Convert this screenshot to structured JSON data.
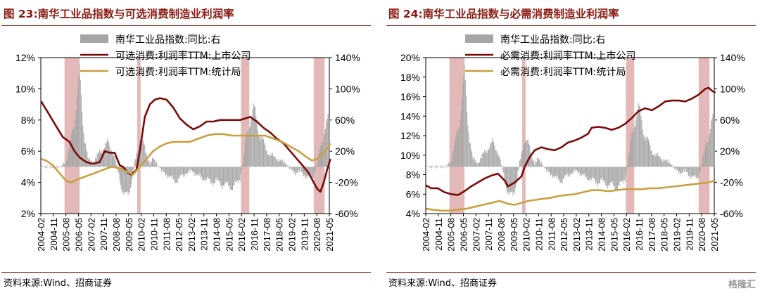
{
  "panels": [
    {
      "title": "图 23:南华工业品指数与可选消费制造业利润率",
      "source": "资料来源:Wind、招商证券"
    },
    {
      "title": "图 24:南华工业品指数与必需消费制造业利润率",
      "source": "资料来源:Wind、招商证券"
    }
  ],
  "watermark": "格隆汇",
  "chart_data": [
    {
      "type": "line",
      "x_ticks": [
        "2004-02",
        "2004-11",
        "2005-08",
        "2006-05",
        "2007-02",
        "2007-11",
        "2008-08",
        "2009-05",
        "2010-02",
        "2010-11",
        "2011-08",
        "2012-05",
        "2013-02",
        "2013-11",
        "2014-08",
        "2015-05",
        "2016-02",
        "2016-11",
        "2017-08",
        "2018-05",
        "2019-02",
        "2019-11",
        "2020-08",
        "2021-05"
      ],
      "y_left": {
        "lim": [
          2,
          12
        ],
        "ticks": [
          "2%",
          "4%",
          "6%",
          "8%",
          "10%",
          "12%"
        ]
      },
      "y_right": {
        "lim": [
          -60,
          140
        ],
        "ticks": [
          "-60%",
          "-20%",
          "20%",
          "60%",
          "100%",
          "140%"
        ]
      },
      "highlights": [
        [
          2005.5,
          2006.4
        ],
        [
          2009.85,
          2010.05
        ],
        [
          2016.05,
          2016.55
        ],
        [
          2020.4,
          2021.05
        ]
      ],
      "highlight_color": "#d9a0a0",
      "series": [
        {
          "name": "南华工业品指数:同比:右",
          "kind": "bar",
          "axis": "right",
          "color": "#a6a6a6",
          "x": [
            2004.1,
            2004.5,
            2004.9,
            2005.3,
            2005.6,
            2005.85,
            2006.1,
            2006.25,
            2006.4,
            2006.55,
            2006.7,
            2006.9,
            2007.2,
            2007.5,
            2007.8,
            2008.1,
            2008.4,
            2008.7,
            2008.9,
            2009.1,
            2009.3,
            2009.5,
            2009.7,
            2009.9,
            2010.0,
            2010.2,
            2010.4,
            2010.6,
            2010.8,
            2011.0,
            2011.3,
            2011.6,
            2011.9,
            2012.2,
            2012.5,
            2012.8,
            2013.1,
            2013.4,
            2013.7,
            2014.0,
            2014.3,
            2014.6,
            2014.9,
            2015.2,
            2015.5,
            2015.8,
            2016.0,
            2016.2,
            2016.4,
            2016.6,
            2016.8,
            2017.0,
            2017.2,
            2017.5,
            2017.8,
            2018.1,
            2018.4,
            2018.7,
            2019.0,
            2019.3,
            2019.6,
            2019.9,
            2020.2,
            2020.4,
            2020.6,
            2020.8,
            2021.0,
            2021.2,
            2021.4
          ],
          "values": [
            0,
            0,
            0,
            0,
            8,
            30,
            60,
            95,
            110,
            70,
            40,
            10,
            5,
            15,
            25,
            30,
            20,
            -5,
            -25,
            -40,
            -35,
            -20,
            5,
            25,
            40,
            30,
            15,
            5,
            10,
            5,
            -5,
            -10,
            -15,
            -18,
            -12,
            -8,
            -5,
            -10,
            -14,
            -16,
            -20,
            -18,
            -22,
            -24,
            -26,
            -22,
            -15,
            10,
            40,
            65,
            70,
            60,
            40,
            25,
            15,
            12,
            8,
            5,
            -3,
            -8,
            -5,
            -12,
            -15,
            -12,
            5,
            25,
            45,
            55,
            60
          ]
        },
        {
          "name": "可选消费:利润率TTM:上市公司",
          "kind": "line",
          "axis": "left",
          "color": "#7a0b0b",
          "x": [
            2004.1,
            2004.5,
            2005.0,
            2005.4,
            2005.8,
            2006.1,
            2006.4,
            2006.8,
            2007.2,
            2007.6,
            2007.9,
            2008.2,
            2008.5,
            2008.8,
            2009.0,
            2009.3,
            2009.5,
            2009.8,
            2010.0,
            2010.3,
            2010.6,
            2010.9,
            2011.2,
            2011.6,
            2012.0,
            2012.4,
            2012.8,
            2013.2,
            2013.6,
            2014.0,
            2014.4,
            2014.8,
            2015.2,
            2015.6,
            2016.0,
            2016.3,
            2016.6,
            2017.0,
            2017.4,
            2017.8,
            2018.2,
            2018.6,
            2019.0,
            2019.4,
            2019.8,
            2020.1,
            2020.4,
            2020.6,
            2020.8,
            2021.0,
            2021.2,
            2021.4
          ],
          "values": [
            9.2,
            8.5,
            7.6,
            6.9,
            6.6,
            6.0,
            5.6,
            5.3,
            5.2,
            5.3,
            6.0,
            5.9,
            5.9,
            5.1,
            5.0,
            4.6,
            4.5,
            4.8,
            6.0,
            8.2,
            9.0,
            9.3,
            9.4,
            9.3,
            8.8,
            8.1,
            7.7,
            7.4,
            7.6,
            7.9,
            7.9,
            8.0,
            8.0,
            8.0,
            8.0,
            8.1,
            8.2,
            7.9,
            7.5,
            7.2,
            6.8,
            6.5,
            6.0,
            5.5,
            5.0,
            4.6,
            4.0,
            3.6,
            3.4,
            4.0,
            4.8,
            5.5
          ]
        },
        {
          "name": "可选消费:利润率TTM:统计局",
          "kind": "line",
          "axis": "left",
          "color": "#c8a040",
          "x": [
            2004.1,
            2004.4,
            2004.8,
            2005.2,
            2005.6,
            2005.9,
            2006.3,
            2006.8,
            2007.3,
            2007.8,
            2008.3,
            2008.8,
            2009.2,
            2009.6,
            2010.0,
            2010.4,
            2010.8,
            2011.2,
            2011.6,
            2012.0,
            2012.5,
            2013.0,
            2013.5,
            2014.0,
            2014.5,
            2015.0,
            2015.5,
            2016.0,
            2016.5,
            2017.0,
            2017.5,
            2018.0,
            2018.5,
            2019.0,
            2019.5,
            2020.0,
            2020.3,
            2020.6,
            2020.9,
            2021.2,
            2021.4
          ],
          "values": [
            5.5,
            5.4,
            5.1,
            4.6,
            4.1,
            4.0,
            4.2,
            4.4,
            4.6,
            4.8,
            5.0,
            4.9,
            4.7,
            4.5,
            5.0,
            5.5,
            6.0,
            6.3,
            6.5,
            6.6,
            6.6,
            6.6,
            6.8,
            7.0,
            7.1,
            7.1,
            7.0,
            7.0,
            7.0,
            7.0,
            7.0,
            6.8,
            6.6,
            6.3,
            6.0,
            5.6,
            5.4,
            5.5,
            5.8,
            6.2,
            6.5
          ]
        }
      ]
    },
    {
      "type": "line",
      "x_ticks": [
        "2004-02",
        "2004-11",
        "2005-08",
        "2006-05",
        "2007-02",
        "2007-11",
        "2008-08",
        "2009-05",
        "2010-02",
        "2010-11",
        "2011-08",
        "2012-05",
        "2013-02",
        "2013-11",
        "2014-08",
        "2015-05",
        "2016-02",
        "2016-11",
        "2017-08",
        "2018-05",
        "2019-02",
        "2019-11",
        "2020-08",
        "2021-05"
      ],
      "y_left": {
        "lim": [
          4,
          20
        ],
        "ticks": [
          "4%",
          "6%",
          "8%",
          "10%",
          "12%",
          "14%",
          "16%",
          "18%",
          "20%"
        ]
      },
      "y_right": {
        "lim": [
          -60,
          140
        ],
        "ticks": [
          "-60%",
          "-20%",
          "20%",
          "60%",
          "100%",
          "140%"
        ]
      },
      "highlights": [
        [
          2005.5,
          2006.4
        ],
        [
          2009.85,
          2010.05
        ],
        [
          2016.05,
          2016.55
        ],
        [
          2020.4,
          2021.05
        ]
      ],
      "highlight_color": "#d9a0a0",
      "series": [
        {
          "name": "南华工业品指数:同比:右",
          "kind": "bar",
          "axis": "right",
          "color": "#a6a6a6",
          "x": [
            2004.1,
            2004.5,
            2004.9,
            2005.3,
            2005.6,
            2005.85,
            2006.1,
            2006.25,
            2006.4,
            2006.55,
            2006.7,
            2006.9,
            2007.2,
            2007.5,
            2007.8,
            2008.1,
            2008.4,
            2008.7,
            2008.9,
            2009.1,
            2009.3,
            2009.5,
            2009.7,
            2009.9,
            2010.0,
            2010.2,
            2010.4,
            2010.6,
            2010.8,
            2011.0,
            2011.3,
            2011.6,
            2011.9,
            2012.2,
            2012.5,
            2012.8,
            2013.1,
            2013.4,
            2013.7,
            2014.0,
            2014.3,
            2014.6,
            2014.9,
            2015.2,
            2015.5,
            2015.8,
            2016.0,
            2016.2,
            2016.4,
            2016.6,
            2016.8,
            2017.0,
            2017.2,
            2017.5,
            2017.8,
            2018.1,
            2018.4,
            2018.7,
            2019.0,
            2019.3,
            2019.6,
            2019.9,
            2020.2,
            2020.4,
            2020.6,
            2020.8,
            2021.0,
            2021.2,
            2021.4
          ],
          "values": [
            0,
            0,
            0,
            0,
            8,
            30,
            60,
            95,
            110,
            70,
            40,
            10,
            5,
            15,
            25,
            30,
            20,
            -5,
            -25,
            -40,
            -35,
            -20,
            5,
            25,
            40,
            30,
            15,
            5,
            10,
            5,
            -5,
            -10,
            -15,
            -18,
            -12,
            -8,
            -5,
            -10,
            -14,
            -16,
            -20,
            -18,
            -22,
            -24,
            -26,
            -22,
            -15,
            10,
            40,
            65,
            70,
            60,
            40,
            25,
            15,
            12,
            8,
            5,
            -3,
            -8,
            -5,
            -12,
            -15,
            -12,
            5,
            25,
            45,
            55,
            60
          ]
        },
        {
          "name": "必需消费:利润率TTM:上市公司",
          "kind": "line",
          "axis": "left",
          "color": "#7a0b0b",
          "x": [
            2004.1,
            2004.4,
            2004.8,
            2005.2,
            2005.6,
            2006.0,
            2006.4,
            2006.8,
            2007.2,
            2007.6,
            2008.0,
            2008.4,
            2008.8,
            2009.0,
            2009.4,
            2009.8,
            2010.0,
            2010.3,
            2010.6,
            2011.0,
            2011.4,
            2011.8,
            2012.2,
            2012.6,
            2013.0,
            2013.4,
            2013.8,
            2014.0,
            2014.4,
            2014.8,
            2015.2,
            2015.6,
            2016.0,
            2016.4,
            2016.8,
            2017.2,
            2017.6,
            2018.0,
            2018.4,
            2018.8,
            2019.2,
            2019.6,
            2020.0,
            2020.4,
            2020.8,
            2021.0,
            2021.2,
            2021.4
          ],
          "values": [
            6.9,
            6.6,
            6.6,
            6.2,
            6.0,
            5.9,
            6.3,
            6.8,
            7.2,
            7.6,
            7.9,
            8.1,
            7.4,
            6.8,
            7.2,
            7.8,
            8.8,
            9.8,
            10.5,
            10.8,
            10.6,
            10.5,
            10.8,
            11.3,
            11.5,
            11.8,
            12.2,
            12.8,
            12.9,
            12.8,
            12.6,
            12.8,
            13.2,
            13.8,
            14.5,
            14.8,
            14.6,
            15.0,
            15.5,
            15.6,
            15.6,
            15.5,
            15.8,
            16.2,
            16.8,
            16.9,
            16.6,
            16.4
          ]
        },
        {
          "name": "必需消费:利润率TTM:统计局",
          "kind": "line",
          "axis": "left",
          "color": "#c8a040",
          "x": [
            2004.1,
            2004.5,
            2005.0,
            2005.5,
            2006.0,
            2006.5,
            2007.0,
            2007.5,
            2008.0,
            2008.5,
            2009.0,
            2009.4,
            2009.8,
            2010.2,
            2010.6,
            2011.0,
            2011.5,
            2012.0,
            2012.5,
            2013.0,
            2013.5,
            2014.0,
            2014.5,
            2015.0,
            2015.5,
            2016.0,
            2016.5,
            2017.0,
            2017.5,
            2018.0,
            2018.5,
            2019.0,
            2019.5,
            2020.0,
            2020.5,
            2021.0,
            2021.4
          ],
          "values": [
            4.5,
            4.4,
            4.3,
            4.3,
            4.4,
            4.5,
            4.7,
            4.9,
            5.1,
            5.3,
            5.0,
            4.9,
            5.1,
            5.3,
            5.4,
            5.5,
            5.6,
            5.8,
            5.9,
            6.0,
            6.2,
            6.4,
            6.4,
            6.3,
            6.4,
            6.5,
            6.5,
            6.5,
            6.6,
            6.6,
            6.7,
            6.8,
            6.9,
            7.0,
            7.1,
            7.2,
            7.4
          ]
        }
      ]
    }
  ]
}
